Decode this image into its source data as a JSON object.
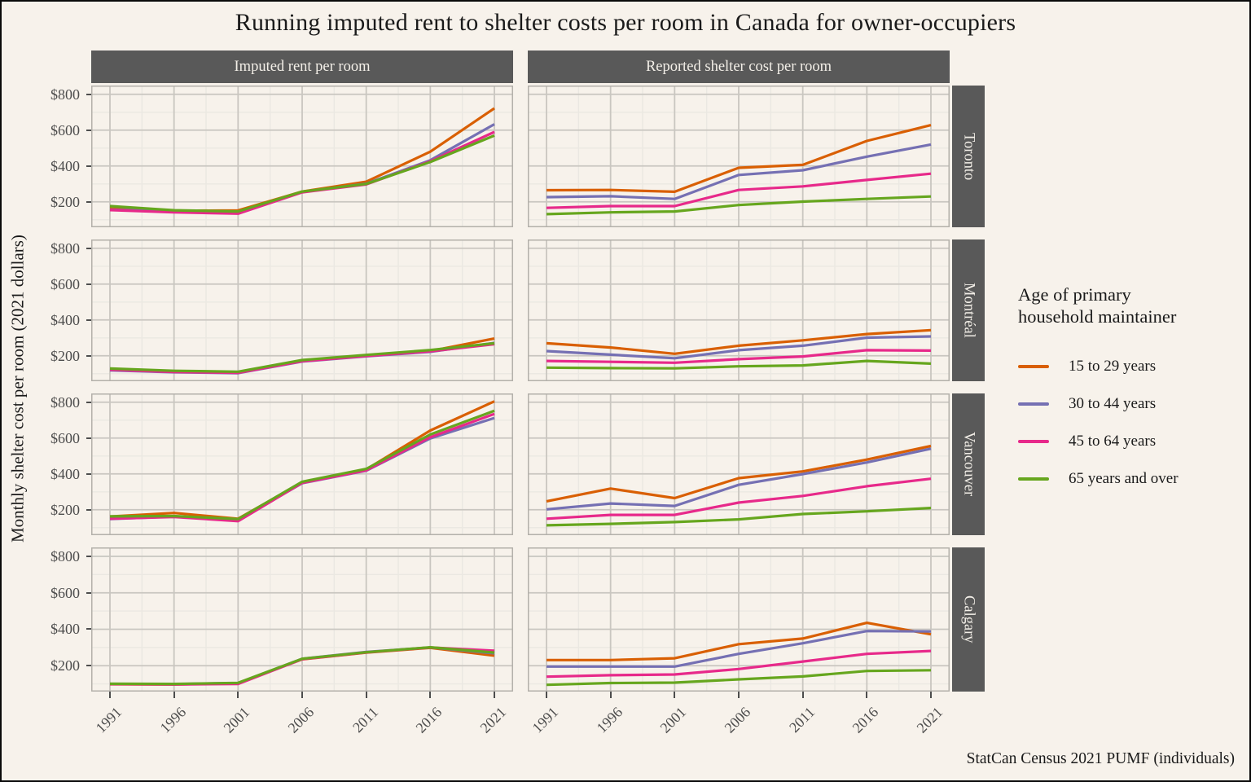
{
  "title": "Running imputed rent to shelter costs per room in Canada for owner-occupiers",
  "caption": "StatCan Census 2021 PUMF (individuals)",
  "y_axis_title": "Monthly shelter cost per room (2021 dollars)",
  "col_strips": [
    "Imputed rent per room",
    "Reported shelter cost per room"
  ],
  "row_strips": [
    "Toronto",
    "Montréal",
    "Vancouver",
    "Calgary"
  ],
  "legend": {
    "title": "Age of primary\nhousehold maintainer",
    "items": [
      {
        "label": "15 to 29 years",
        "color": "#D95F02"
      },
      {
        "label": "30 to 44 years",
        "color": "#7570B3"
      },
      {
        "label": "45 to 64 years",
        "color": "#E7298A"
      },
      {
        "label": "65 years and over",
        "color": "#66A61E"
      }
    ]
  },
  "axes": {
    "x_ticks": [
      1991,
      1996,
      2001,
      2006,
      2011,
      2016,
      2021
    ],
    "x_minor": [
      1993.5,
      1998.5,
      2003.5,
      2008.5,
      2013.5,
      2018.5
    ],
    "y_ticks": [
      {
        "label": "$800",
        "value": 800
      },
      {
        "label": "$600",
        "value": 600
      },
      {
        "label": "$400",
        "value": 400
      },
      {
        "label": "$200",
        "value": 200
      }
    ],
    "y_minor": [
      100,
      300,
      500,
      700
    ],
    "ylim": [
      58,
      849
    ],
    "grid_major_color": "#c9c6c0",
    "grid_minor_color": "#ebe8e2",
    "panel_border_color": "#b3b0aa",
    "panel_bg": "#f7f2eb"
  },
  "chart_data": [
    {
      "type": "line",
      "city": "Toronto",
      "measure": "Imputed rent per room",
      "x": [
        1991,
        1996,
        2001,
        2006,
        2011,
        2016,
        2021
      ],
      "series": [
        {
          "name": "15 to 29 years",
          "values": [
            162,
            150,
            152,
            257,
            312,
            480,
            722
          ]
        },
        {
          "name": "30 to 44 years",
          "values": [
            156,
            146,
            141,
            255,
            301,
            432,
            633
          ]
        },
        {
          "name": "45 to 64 years",
          "values": [
            154,
            141,
            134,
            253,
            297,
            426,
            590
          ]
        },
        {
          "name": "65 years and over",
          "values": [
            176,
            153,
            146,
            257,
            300,
            422,
            570
          ]
        }
      ]
    },
    {
      "type": "line",
      "city": "Toronto",
      "measure": "Reported shelter cost per room",
      "x": [
        1991,
        1996,
        2001,
        2006,
        2011,
        2016,
        2021
      ],
      "series": [
        {
          "name": "15 to 29 years",
          "values": [
            265,
            266,
            256,
            390,
            406,
            540,
            628
          ]
        },
        {
          "name": "30 to 44 years",
          "values": [
            226,
            231,
            216,
            350,
            376,
            452,
            520
          ]
        },
        {
          "name": "45 to 64 years",
          "values": [
            166,
            176,
            176,
            266,
            286,
            322,
            357
          ]
        },
        {
          "name": "65 years and over",
          "values": [
            131,
            141,
            146,
            182,
            201,
            216,
            230
          ]
        }
      ]
    },
    {
      "type": "line",
      "city": "Montréal",
      "measure": "Imputed rent per room",
      "x": [
        1991,
        1996,
        2001,
        2006,
        2011,
        2016,
        2021
      ],
      "series": [
        {
          "name": "15 to 29 years",
          "values": [
            122,
            110,
            106,
            171,
            200,
            226,
            296
          ]
        },
        {
          "name": "30 to 44 years",
          "values": [
            119,
            108,
            103,
            168,
            197,
            222,
            272
          ]
        },
        {
          "name": "45 to 64 years",
          "values": [
            122,
            110,
            105,
            170,
            199,
            225,
            265
          ]
        },
        {
          "name": "65 years and over",
          "values": [
            129,
            116,
            111,
            176,
            205,
            232,
            270
          ]
        }
      ]
    },
    {
      "type": "line",
      "city": "Montréal",
      "measure": "Reported shelter cost per room",
      "x": [
        1991,
        1996,
        2001,
        2006,
        2011,
        2016,
        2021
      ],
      "series": [
        {
          "name": "15 to 29 years",
          "values": [
            270,
            246,
            211,
            256,
            286,
            321,
            343
          ]
        },
        {
          "name": "30 to 44 years",
          "values": [
            226,
            206,
            186,
            231,
            256,
            301,
            308
          ]
        },
        {
          "name": "45 to 64 years",
          "values": [
            171,
            166,
            161,
            181,
            196,
            231,
            229
          ]
        },
        {
          "name": "65 years and over",
          "values": [
            134,
            131,
            130,
            141,
            146,
            171,
            156
          ]
        }
      ]
    },
    {
      "type": "line",
      "city": "Vancouver",
      "measure": "Imputed rent per room",
      "x": [
        1991,
        1996,
        2001,
        2006,
        2011,
        2016,
        2021
      ],
      "series": [
        {
          "name": "15 to 29 years",
          "values": [
            162,
            182,
            150,
            352,
            425,
            642,
            805
          ]
        },
        {
          "name": "30 to 44 years",
          "values": [
            148,
            162,
            143,
            348,
            418,
            598,
            712
          ]
        },
        {
          "name": "45 to 64 years",
          "values": [
            150,
            160,
            136,
            350,
            420,
            605,
            735
          ]
        },
        {
          "name": "65 years and over",
          "values": [
            163,
            165,
            148,
            356,
            428,
            620,
            752
          ]
        }
      ]
    },
    {
      "type": "line",
      "city": "Vancouver",
      "measure": "Reported shelter cost per room",
      "x": [
        1991,
        1996,
        2001,
        2006,
        2011,
        2016,
        2021
      ],
      "series": [
        {
          "name": "15 to 29 years",
          "values": [
            247,
            318,
            265,
            376,
            414,
            480,
            556
          ]
        },
        {
          "name": "30 to 44 years",
          "values": [
            202,
            235,
            221,
            339,
            399,
            464,
            541
          ]
        },
        {
          "name": "45 to 64 years",
          "values": [
            150,
            171,
            171,
            240,
            277,
            331,
            373
          ]
        },
        {
          "name": "65 years and over",
          "values": [
            113,
            121,
            131,
            146,
            176,
            191,
            210
          ]
        }
      ]
    },
    {
      "type": "line",
      "city": "Calgary",
      "measure": "Imputed rent per room",
      "x": [
        1991,
        1996,
        2001,
        2006,
        2011,
        2016,
        2021
      ],
      "series": [
        {
          "name": "15 to 29 years",
          "values": [
            98,
            97,
            103,
            235,
            272,
            298,
            255
          ]
        },
        {
          "name": "30 to 44 years",
          "values": [
            100,
            99,
            105,
            238,
            275,
            300,
            268
          ]
        },
        {
          "name": "45 to 64 years",
          "values": [
            99,
            97,
            100,
            236,
            273,
            300,
            282
          ]
        },
        {
          "name": "65 years and over",
          "values": [
            101,
            100,
            106,
            238,
            274,
            301,
            272
          ]
        }
      ]
    },
    {
      "type": "line",
      "city": "Calgary",
      "measure": "Reported shelter cost per room",
      "x": [
        1991,
        1996,
        2001,
        2006,
        2011,
        2016,
        2021
      ],
      "series": [
        {
          "name": "15 to 29 years",
          "values": [
            231,
            231,
            241,
            318,
            349,
            435,
            372
          ]
        },
        {
          "name": "30 to 44 years",
          "values": [
            195,
            195,
            195,
            265,
            323,
            390,
            388
          ]
        },
        {
          "name": "45 to 64 years",
          "values": [
            140,
            148,
            152,
            182,
            223,
            265,
            281
          ]
        },
        {
          "name": "65 years and over",
          "values": [
            95,
            105,
            107,
            125,
            141,
            171,
            175
          ]
        }
      ]
    }
  ]
}
